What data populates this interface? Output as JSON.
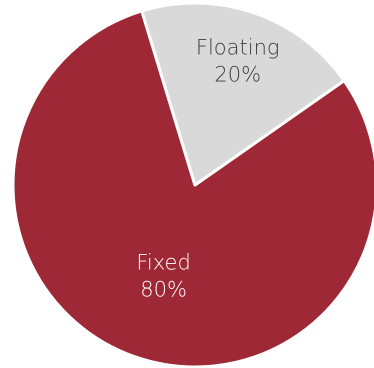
{
  "chart_data": {
    "type": "pie",
    "title": "",
    "slices": [
      {
        "label": "Fixed",
        "value": 80,
        "value_label": "80%",
        "color": "#9e2836",
        "label_color": "#ffffff"
      },
      {
        "label": "Floating",
        "value": 20,
        "value_label": "20%",
        "color": "#d9d9d9",
        "label_color": "#404040"
      }
    ],
    "start_angle_deg": 35,
    "direction": "clockwise",
    "legend": "none"
  }
}
